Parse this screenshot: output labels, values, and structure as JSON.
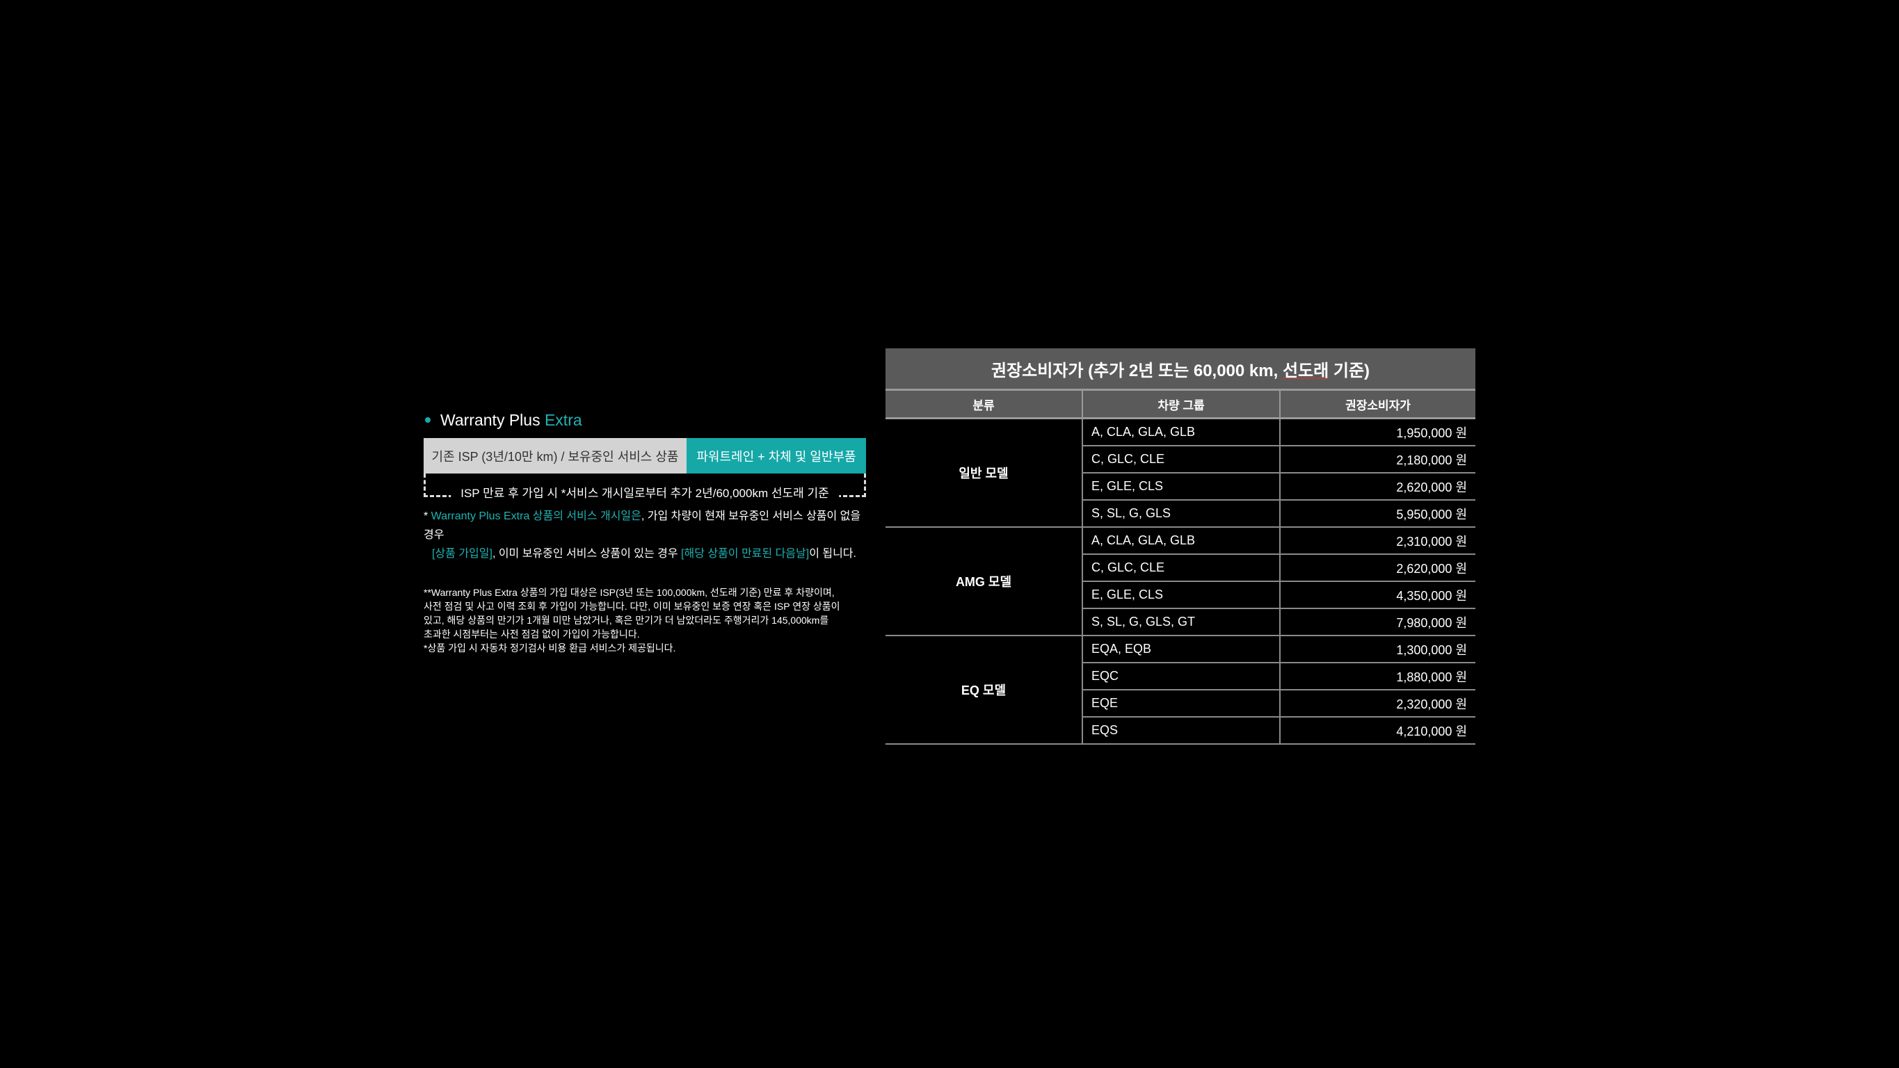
{
  "left": {
    "title_prefix": "Warranty Plus",
    "title_accent": "Extra",
    "bar_existing": "기존 ISP (3년/10만 km) / 보유중인 서비스 상품",
    "bar_extra": "파워트레인 + 차체 및 일반부품",
    "bracket_text": "ISP 만료 후 가입 시 *서비스 개시일로부터 추가 2년/60,000km 선도래 기준",
    "note": {
      "star": "* ",
      "teal1": "Warranty Plus Extra 상품의 서비스 개시일은",
      "text1": ", 가입 차량이 현재 보유중인 서비스 상품이 없을 경우",
      "teal2": "[상품 가입일]",
      "text2": ", 이미 보유중인 서비스 상품이 있는 경우 ",
      "teal3": "[해당 상품이 만료된 다음날]",
      "text3": "이 됩니다."
    },
    "fine_print": [
      "**Warranty Plus Extra 상품의 가입 대상은 ISP(3년 또는 100,000km, 선도래 기준) 만료 후 차량이며,",
      "사전 점검 및 사고 이력 조회 후 가입이 가능합니다. 다만, 이미 보유중인 보증 연장 혹은 ISP 연장 상품이",
      "있고, 해당 상품의 만기가 1개월 미만 남았거나, 혹은 만기가 더 남았더라도 주행거리가 145,000km를",
      "초과한 시점부터는 사전 점검 없이 가입이 가능합니다.",
      "*상품 가입 시 자동차 정기검사 비용 환급 서비스가 제공됩니다."
    ]
  },
  "table": {
    "caption_a": "권장소비자가 (추가 2년 또는 60,000 km, ",
    "caption_b": "선도래",
    "caption_c": " 기준)",
    "headers": [
      "분류",
      "차량 그룹",
      "권장소비자가"
    ],
    "groups": [
      {
        "category": "일반 모델",
        "rows": [
          {
            "group": "A, CLA, GLA, GLB",
            "price": "1,950,000 원"
          },
          {
            "group": "C, GLC, CLE",
            "price": "2,180,000 원"
          },
          {
            "group": "E, GLE, CLS",
            "price": "2,620,000 원"
          },
          {
            "group": "S, SL, G, GLS",
            "price": "5,950,000 원"
          }
        ]
      },
      {
        "category": "AMG 모델",
        "rows": [
          {
            "group": "A, CLA, GLA, GLB",
            "price": "2,310,000 원"
          },
          {
            "group": "C, GLC, CLE",
            "price": "2,620,000 원"
          },
          {
            "group": "E, GLE, CLS",
            "price": "4,350,000 원"
          },
          {
            "group": "S, SL, G, GLS, GT",
            "price": "7,980,000 원"
          }
        ]
      },
      {
        "category": "EQ 모델",
        "rows": [
          {
            "group": "EQA, EQB",
            "price": "1,300,000 원"
          },
          {
            "group": "EQC",
            "price": "1,880,000 원"
          },
          {
            "group": "EQE",
            "price": "2,320,000 원"
          },
          {
            "group": "EQS",
            "price": "4,210,000 원"
          }
        ]
      }
    ]
  },
  "colors": {
    "accent": "#16a7a7",
    "header_bg": "#5a5a5a",
    "bar_gray": "#d3d3d3"
  }
}
